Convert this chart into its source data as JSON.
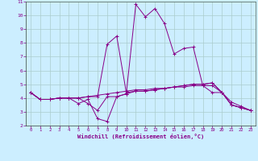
{
  "xlabel": "Windchill (Refroidissement éolien,°C)",
  "bg_color": "#cceeff",
  "line_color": "#880088",
  "grid_color": "#aacccc",
  "xlim": [
    -0.5,
    23.5
  ],
  "ylim": [
    2,
    11
  ],
  "xticks": [
    0,
    1,
    2,
    3,
    4,
    5,
    6,
    7,
    8,
    9,
    10,
    11,
    12,
    13,
    14,
    15,
    16,
    17,
    18,
    19,
    20,
    21,
    22,
    23
  ],
  "yticks": [
    2,
    3,
    4,
    5,
    6,
    7,
    8,
    9,
    10,
    11
  ],
  "series": [
    [
      4.4,
      3.9,
      3.9,
      4.0,
      4.0,
      4.0,
      4.1,
      4.2,
      4.3,
      4.4,
      4.5,
      4.6,
      4.6,
      4.7,
      4.7,
      4.8,
      4.8,
      4.9,
      4.9,
      4.9,
      4.4,
      3.5,
      3.3,
      3.1
    ],
    [
      4.4,
      3.9,
      3.9,
      4.0,
      4.0,
      3.6,
      3.9,
      2.5,
      2.3,
      4.1,
      4.3,
      10.8,
      9.9,
      10.5,
      9.4,
      7.2,
      7.6,
      7.7,
      4.9,
      4.4,
      4.4,
      3.7,
      3.4,
      3.1
    ],
    [
      4.4,
      3.9,
      3.9,
      4.0,
      4.0,
      4.0,
      3.6,
      3.1,
      4.1,
      4.1,
      4.3,
      4.5,
      4.5,
      4.6,
      4.7,
      4.8,
      4.9,
      5.0,
      5.0,
      5.1,
      4.4,
      3.5,
      3.3,
      3.1
    ],
    [
      4.4,
      3.9,
      3.9,
      4.0,
      4.0,
      4.0,
      4.1,
      4.1,
      7.9,
      8.5,
      4.4,
      4.5,
      4.5,
      4.6,
      4.7,
      4.8,
      4.9,
      5.0,
      5.0,
      5.1,
      4.4,
      3.5,
      3.3,
      3.1
    ]
  ]
}
